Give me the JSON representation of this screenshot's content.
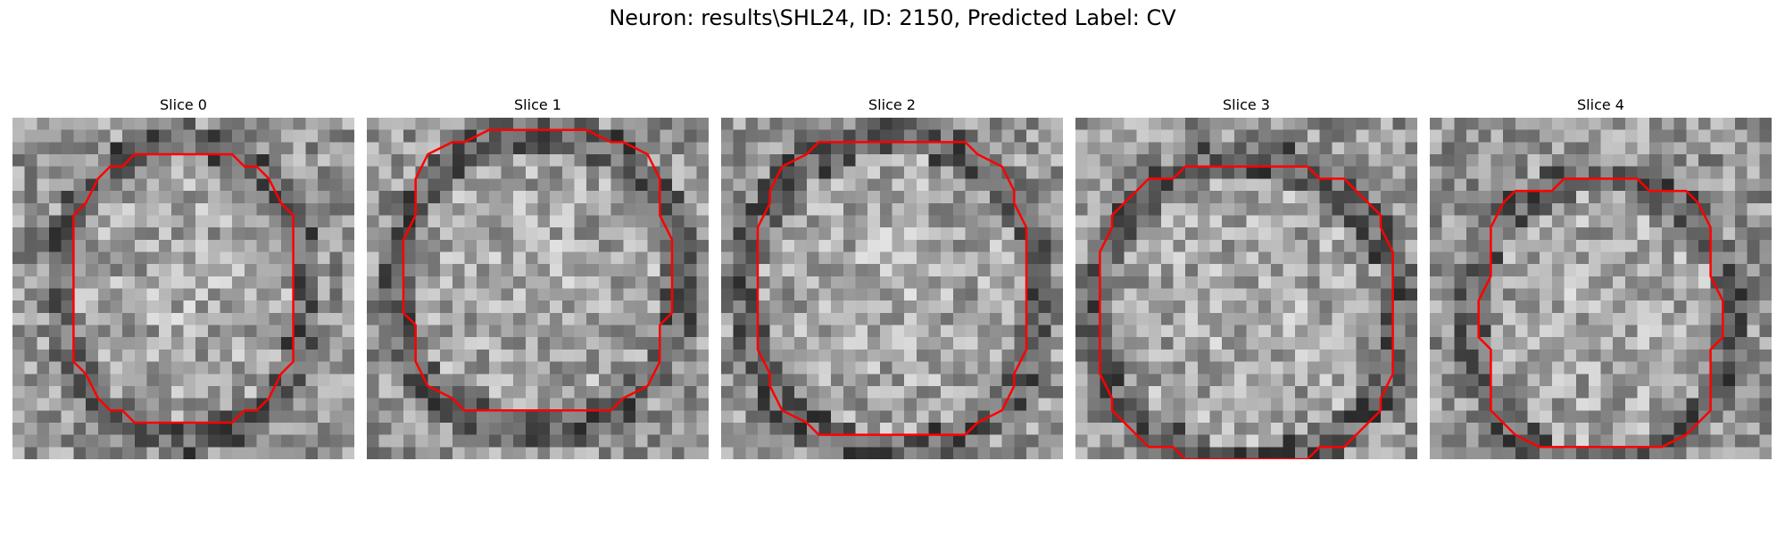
{
  "figure": {
    "title": "Neuron: results\\SHL24, ID: 2150, Predicted Label: CV"
  },
  "panels": [
    {
      "title": "Slice 0"
    },
    {
      "title": "Slice 1"
    },
    {
      "title": "Slice 2"
    },
    {
      "title": "Slice 3"
    },
    {
      "title": "Slice 4"
    }
  ],
  "colors": {
    "contour": "#ff0000",
    "image_colormap": "gray"
  },
  "image": {
    "grid_cells": 28
  }
}
